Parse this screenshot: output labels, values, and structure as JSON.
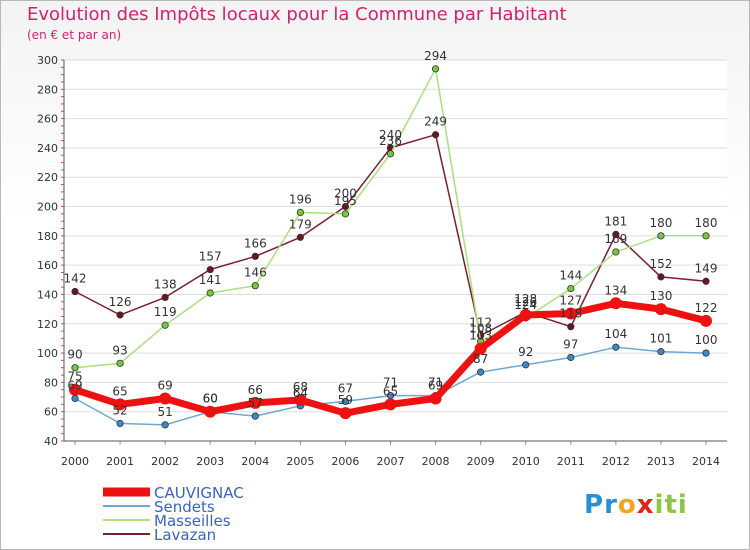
{
  "title": "Evolution des Impôts locaux pour la Commune par Habitant",
  "subtitle": "(en € et par an)",
  "logo": {
    "letters": [
      "P",
      "r",
      "o",
      "x",
      "i",
      "t",
      "i"
    ],
    "colors": [
      "#2a8fd6",
      "#2a8fd6",
      "#f2a51d",
      "#e0231c",
      "#8dc63f",
      "#8dc63f",
      "#8dc63f"
    ]
  },
  "chart_data": {
    "type": "line",
    "categories": [
      "2000",
      "2001",
      "2002",
      "2003",
      "2004",
      "2005",
      "2006",
      "2007",
      "2008",
      "2009",
      "2010",
      "2011",
      "2012",
      "2013",
      "2014"
    ],
    "ylim": [
      40,
      300
    ],
    "yticks": [
      "40",
      "60",
      "80",
      "100",
      "120",
      "140",
      "160",
      "180",
      "200",
      "220",
      "240",
      "260",
      "280",
      "300"
    ],
    "series": [
      {
        "name": "Lavazan",
        "color": "#7a1f2e",
        "marker": "#6b1422",
        "width": 1.5,
        "values": [
          142,
          126,
          138,
          157,
          166,
          179,
          200,
          240,
          249,
          112,
          128,
          118,
          181,
          152,
          149
        ],
        "labels": [
          "142",
          "126",
          "138",
          "157",
          "166",
          "179",
          "200",
          "240",
          "249",
          "112",
          "128",
          "118",
          "181",
          "152",
          "149"
        ]
      },
      {
        "name": "Masseilles",
        "color": "#a9e07c",
        "marker": "#78c83c",
        "width": 1.5,
        "values": [
          90,
          93,
          119,
          141,
          146,
          196,
          195,
          236,
          294,
          108,
          124,
          144,
          169,
          180,
          180
        ],
        "labels": [
          "90",
          "93",
          "119",
          "141",
          "146",
          "196",
          "195",
          "236",
          "294",
          "108",
          "124",
          "144",
          "169",
          "180",
          "180"
        ]
      },
      {
        "name": "Sendets",
        "color": "#6fa7d2",
        "marker": "#3a88c8",
        "width": 1.5,
        "values": [
          69,
          52,
          51,
          60,
          57,
          64,
          67,
          71,
          71,
          87,
          92,
          97,
          104,
          101,
          100
        ],
        "labels": [
          "69",
          "52",
          "51",
          "60",
          "57",
          "64",
          "67",
          "71",
          "71",
          "87",
          "92",
          "97",
          "104",
          "101",
          "100"
        ]
      },
      {
        "name": "CAUVIGNAC",
        "color": "#ee1111",
        "marker": "#ee1111",
        "width": 7,
        "values": [
          75,
          65,
          69,
          60,
          66,
          68,
          59,
          65,
          69,
          103,
          126,
          127,
          134,
          130,
          122
        ],
        "labels": [
          "75",
          "65",
          "69",
          "60",
          "66",
          "68",
          "59",
          "65",
          "69",
          "103",
          "126",
          "127",
          "134",
          "130",
          "122"
        ]
      }
    ],
    "legend": [
      "CAUVIGNAC",
      "Sendets",
      "Masseilles",
      "Lavazan"
    ]
  }
}
